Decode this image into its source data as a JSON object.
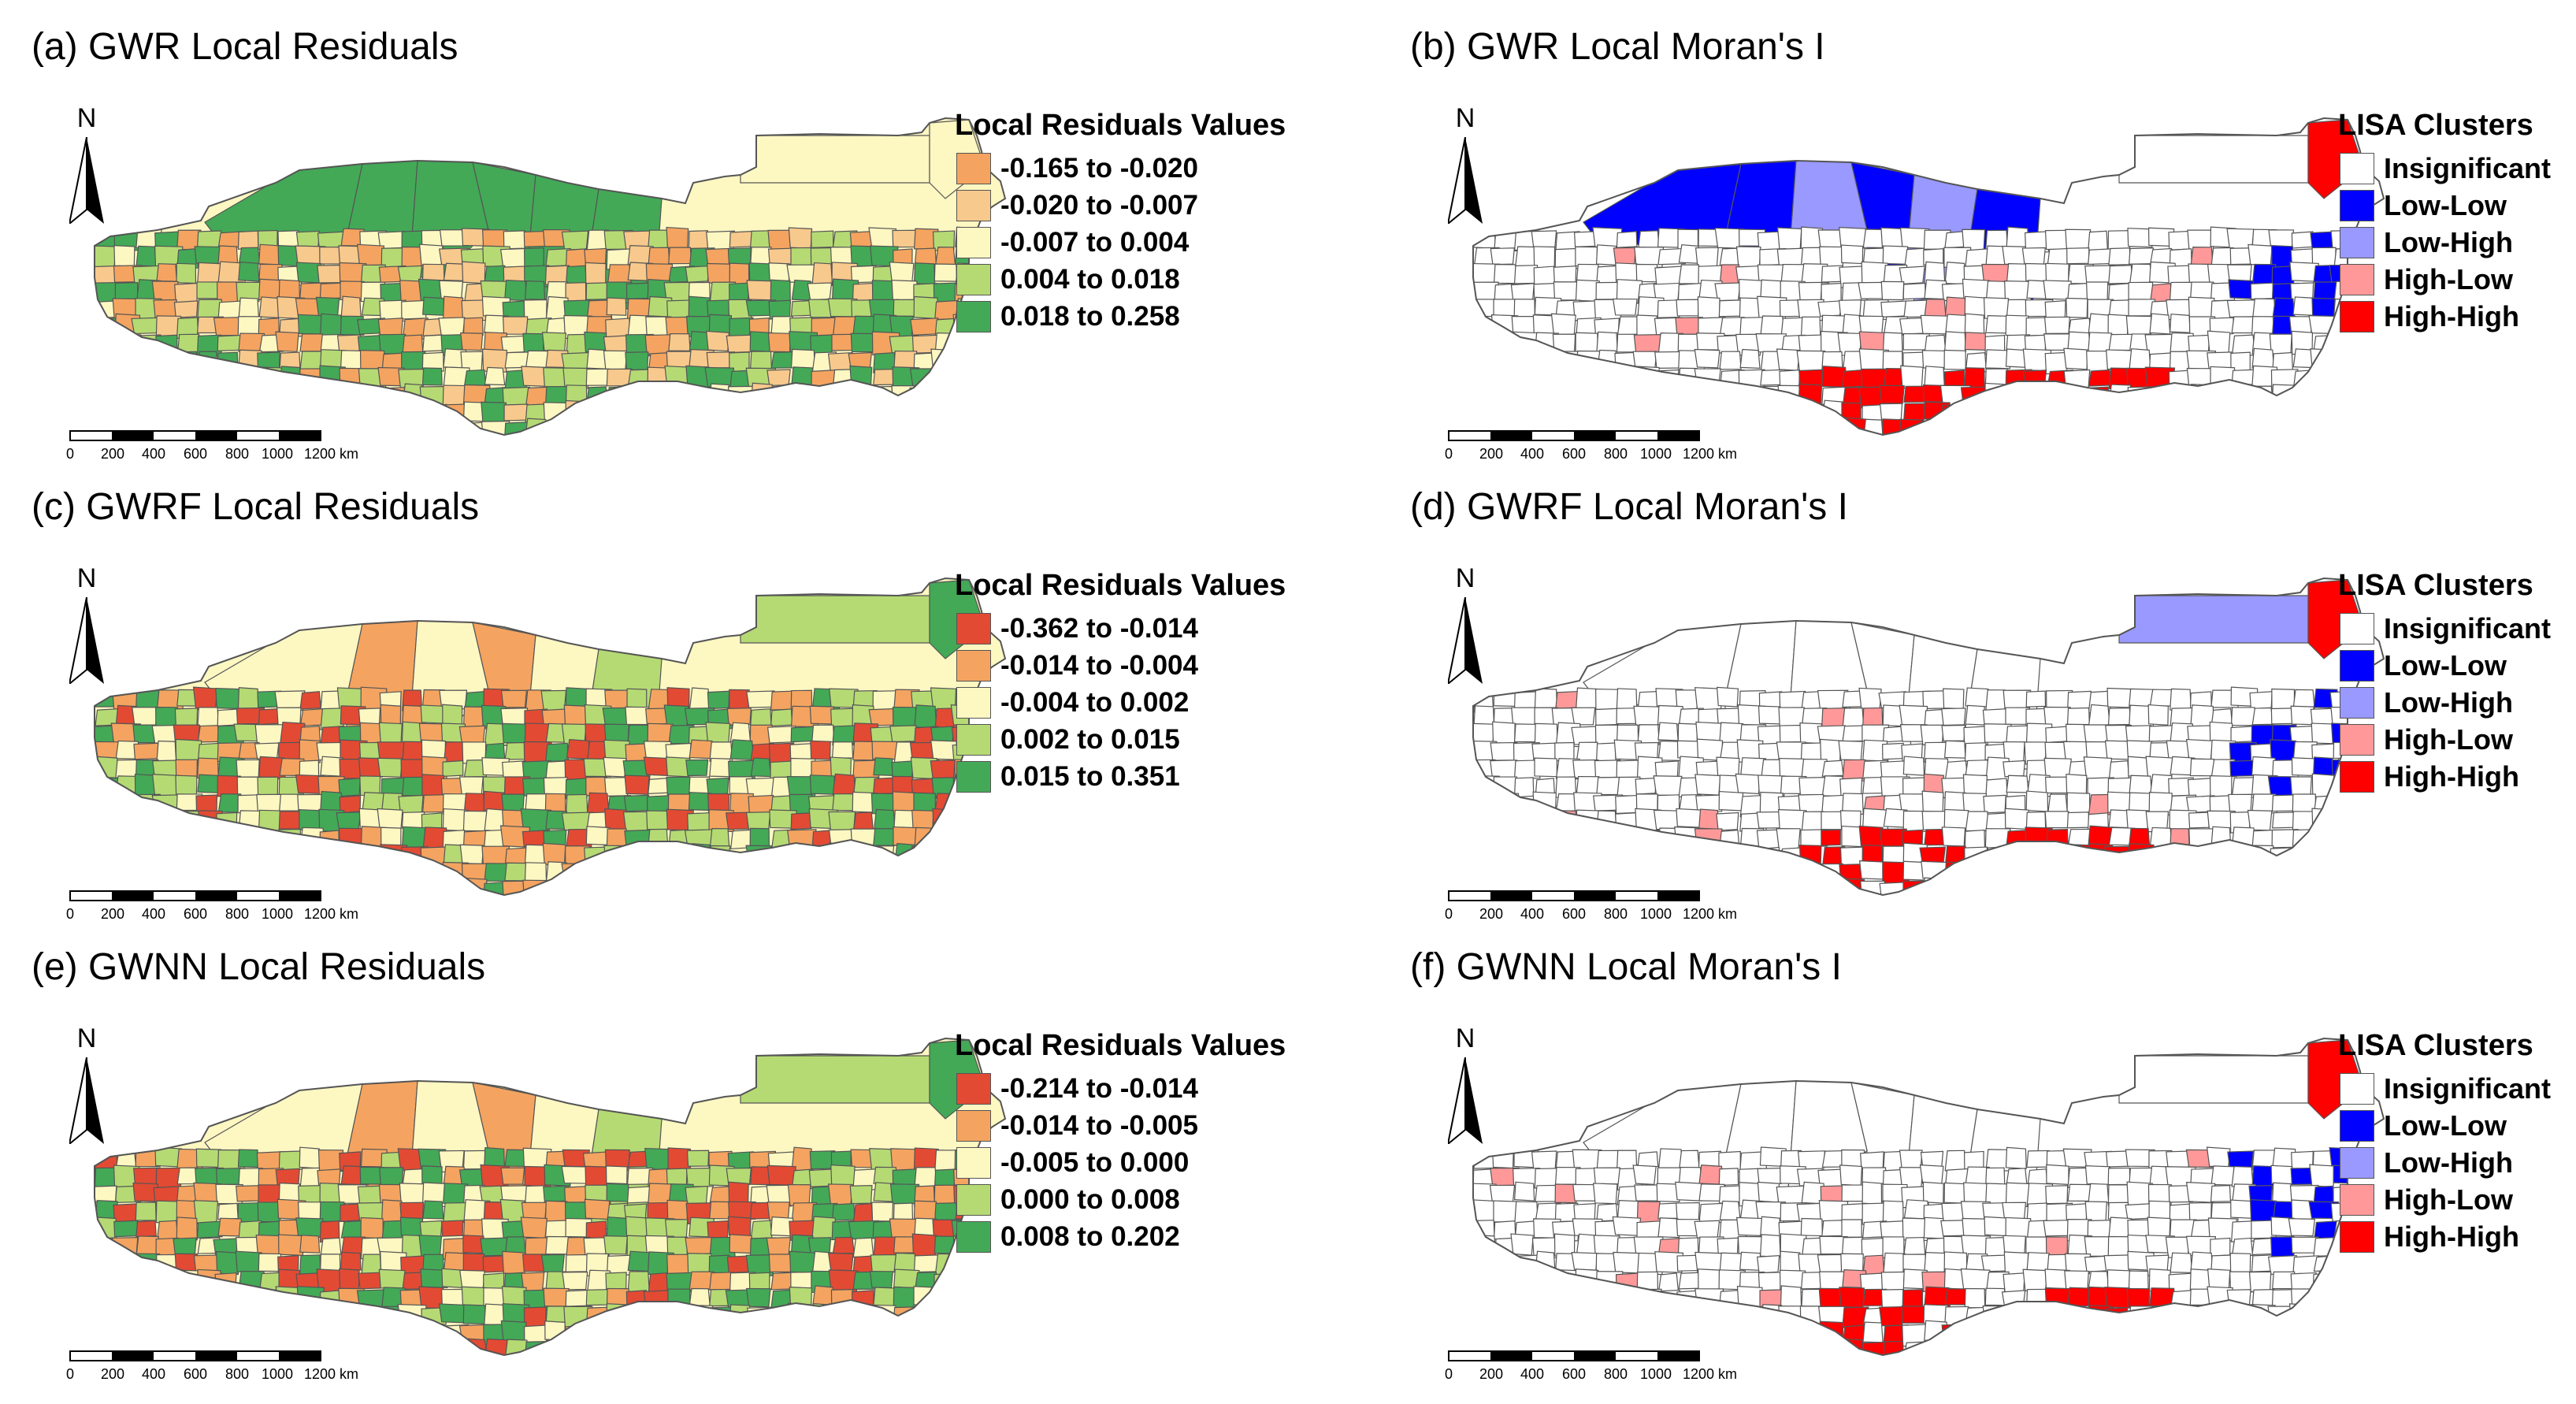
{
  "panels": [
    {
      "id": "a",
      "title": "(a) GWR Local Residuals",
      "kind": "residuals",
      "north_label": "N",
      "scale_ticks": [
        "0",
        "200",
        "400",
        "600",
        "800",
        "1000",
        "1200 km"
      ],
      "legend": {
        "title": "Local Residuals Values",
        "items": [
          {
            "label": "-0.165 to -0.020",
            "color": "#f4a460"
          },
          {
            "label": "-0.020 to -0.007",
            "color": "#f8c98c"
          },
          {
            "label": "-0.007 to 0.004",
            "color": "#fdf7c2"
          },
          {
            "label": "0.004 to 0.018",
            "color": "#b5da74"
          },
          {
            "label": "0.018 to 0.258",
            "color": "#43a957"
          }
        ]
      }
    },
    {
      "id": "b",
      "title": "(b) GWR Local Moran's I",
      "kind": "lisa",
      "north_label": "N",
      "scale_ticks": [
        "0",
        "200",
        "400",
        "600",
        "800",
        "1000",
        "1200 km"
      ],
      "legend": {
        "title": "LISA Clusters",
        "items": [
          {
            "label": "Insignificant",
            "color": "#ffffff"
          },
          {
            "label": "Low-Low",
            "color": "#0000ff"
          },
          {
            "label": "Low-High",
            "color": "#9999ff"
          },
          {
            "label": "High-Low",
            "color": "#ff9999"
          },
          {
            "label": "High-High",
            "color": "#ff0000"
          }
        ]
      }
    },
    {
      "id": "c",
      "title": "(c) GWRF Local Residuals",
      "kind": "residuals",
      "north_label": "N",
      "scale_ticks": [
        "0",
        "200",
        "400",
        "600",
        "800",
        "1000",
        "1200 km"
      ],
      "legend": {
        "title": "Local Residuals Values",
        "items": [
          {
            "label": "-0.362 to -0.014",
            "color": "#e34a33"
          },
          {
            "label": "-0.014 to -0.004",
            "color": "#f4a460"
          },
          {
            "label": "-0.004 to 0.002",
            "color": "#fdf7c2"
          },
          {
            "label": "0.002 to 0.015",
            "color": "#b5da74"
          },
          {
            "label": "0.015 to 0.351",
            "color": "#43a957"
          }
        ]
      }
    },
    {
      "id": "d",
      "title": "(d) GWRF Local Moran's I",
      "kind": "lisa",
      "north_label": "N",
      "scale_ticks": [
        "0",
        "200",
        "400",
        "600",
        "800",
        "1000",
        "1200 km"
      ],
      "legend": {
        "title": "LISA Clusters",
        "items": [
          {
            "label": "Insignificant",
            "color": "#ffffff"
          },
          {
            "label": "Low-Low",
            "color": "#0000ff"
          },
          {
            "label": "Low-High",
            "color": "#9999ff"
          },
          {
            "label": "High-Low",
            "color": "#ff9999"
          },
          {
            "label": "High-High",
            "color": "#ff0000"
          }
        ]
      }
    },
    {
      "id": "e",
      "title": "(e) GWNN Local Residuals",
      "kind": "residuals",
      "north_label": "N",
      "scale_ticks": [
        "0",
        "200",
        "400",
        "600",
        "800",
        "1000",
        "1200 km"
      ],
      "legend": {
        "title": "Local Residuals Values",
        "items": [
          {
            "label": "-0.214 to -0.014",
            "color": "#e34a33"
          },
          {
            "label": "-0.014 to -0.005",
            "color": "#f4a460"
          },
          {
            "label": "-0.005 to 0.000",
            "color": "#fdf7c2"
          },
          {
            "label": "0.000 to 0.008",
            "color": "#b5da74"
          },
          {
            "label": "0.008 to 0.202",
            "color": "#43a957"
          }
        ]
      }
    },
    {
      "id": "f",
      "title": "(f) GWNN Local Moran's I",
      "kind": "lisa",
      "north_label": "N",
      "scale_ticks": [
        "0",
        "200",
        "400",
        "600",
        "800",
        "1000",
        "1200 km"
      ],
      "legend": {
        "title": "LISA Clusters",
        "items": [
          {
            "label": "Insignificant",
            "color": "#ffffff"
          },
          {
            "label": "Low-Low",
            "color": "#0000ff"
          },
          {
            "label": "Low-High",
            "color": "#9999ff"
          },
          {
            "label": "High-Low",
            "color": "#ff9999"
          },
          {
            "label": "High-High",
            "color": "#ff0000"
          }
        ]
      }
    }
  ]
}
